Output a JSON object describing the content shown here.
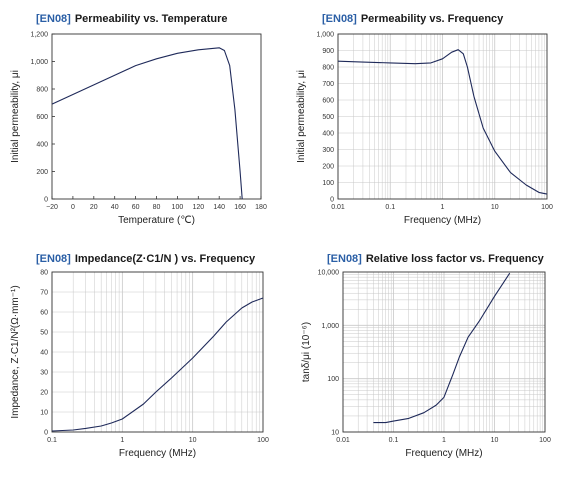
{
  "colors": {
    "code": "#2b5fa6",
    "grid": "#c8c8c8",
    "frame": "#333333",
    "line": "#1f2a5a"
  },
  "chart_data": [
    {
      "type": "line",
      "title_code": "[EN08]",
      "title": "Permeability vs. Temperature",
      "xlabel": "Temperature (℃)",
      "ylabel": "Initial permeability, μi",
      "xscale": "linear",
      "yscale": "linear",
      "xlim": [
        -20,
        180
      ],
      "ylim": [
        0,
        1200
      ],
      "xticks": [
        -20,
        0,
        20,
        40,
        60,
        80,
        100,
        120,
        140,
        160,
        180
      ],
      "xtick_labels": [
        "−20",
        "0",
        "20",
        "40",
        "60",
        "80",
        "100",
        "120",
        "140",
        "160",
        "180"
      ],
      "yticks": [
        0,
        200,
        400,
        600,
        800,
        1000,
        1200
      ],
      "ytick_labels": [
        "0",
        "200",
        "400",
        "600",
        "800",
        "1,000",
        "1,200"
      ],
      "grid": false,
      "series": [
        {
          "x": [
            -20,
            0,
            20,
            40,
            60,
            80,
            100,
            120,
            140,
            145,
            150,
            155,
            160,
            162
          ],
          "y": [
            690,
            760,
            830,
            900,
            970,
            1020,
            1060,
            1085,
            1100,
            1080,
            970,
            650,
            200,
            0
          ]
        }
      ]
    },
    {
      "type": "line",
      "title_code": "[EN08]",
      "title": "Permeability vs. Frequency",
      "xlabel": "Frequency (MHz)",
      "ylabel": "Initial permeability, μi",
      "xscale": "log",
      "yscale": "linear",
      "xlim": [
        0.01,
        100
      ],
      "ylim": [
        0,
        1000
      ],
      "xticks": [
        0.01,
        0.1,
        1,
        10,
        100
      ],
      "xtick_labels": [
        "0.01",
        "0.1",
        "1",
        "10",
        "100"
      ],
      "yticks": [
        0,
        100,
        200,
        300,
        400,
        500,
        600,
        700,
        800,
        900,
        1000
      ],
      "ytick_labels": [
        "0",
        "100",
        "200",
        "300",
        "400",
        "500",
        "600",
        "700",
        "800",
        "900",
        "1,000"
      ],
      "grid": true,
      "series": [
        {
          "x": [
            0.01,
            0.03,
            0.1,
            0.3,
            0.6,
            1,
            1.5,
            2,
            2.5,
            3,
            4,
            6,
            10,
            20,
            40,
            70,
            100
          ],
          "y": [
            835,
            830,
            825,
            820,
            825,
            850,
            890,
            905,
            880,
            800,
            620,
            430,
            290,
            160,
            85,
            40,
            30
          ]
        }
      ]
    },
    {
      "type": "line",
      "title_code": "[EN08]",
      "title": "Impedance",
      "title_suffix": "(Z·C1/N ) vs. Frequency",
      "xlabel": "Frequency (MHz)",
      "ylabel": "Impedance, Z·C1/N²(Ω·mm⁻¹)",
      "xscale": "log",
      "yscale": "linear",
      "xlim": [
        0.1,
        100
      ],
      "ylim": [
        0,
        80
      ],
      "xticks": [
        0.1,
        1,
        10,
        100
      ],
      "xtick_labels": [
        "0.1",
        "1",
        "10",
        "100"
      ],
      "yticks": [
        0,
        10,
        20,
        30,
        40,
        50,
        60,
        70,
        80
      ],
      "ytick_labels": [
        "0",
        "10",
        "20",
        "30",
        "40",
        "50",
        "60",
        "70",
        "80"
      ],
      "grid": true,
      "series": [
        {
          "x": [
            0.1,
            0.2,
            0.3,
            0.5,
            0.7,
            1,
            2,
            3,
            5,
            10,
            20,
            30,
            50,
            70,
            100
          ],
          "y": [
            0.5,
            1,
            1.8,
            3,
            4.5,
            6.5,
            14,
            20,
            27,
            37,
            48,
            55,
            62,
            65,
            67
          ]
        }
      ]
    },
    {
      "type": "line",
      "title_code": "[EN08]",
      "title": "Relative loss factor vs. Frequency",
      "xlabel": "Frequency (MHz)",
      "ylabel": "tanδ/μi (10⁻⁶)",
      "xscale": "log",
      "yscale": "log",
      "xlim": [
        0.01,
        100
      ],
      "ylim": [
        10,
        10000
      ],
      "xticks": [
        0.01,
        0.1,
        1,
        10,
        100
      ],
      "xtick_labels": [
        "0.01",
        "0.1",
        "1",
        "10",
        "100"
      ],
      "yticks": [
        10,
        100,
        1000,
        10000
      ],
      "ytick_labels": [
        "10",
        "100",
        "1,000",
        "10,000"
      ],
      "grid": true,
      "series": [
        {
          "x": [
            0.04,
            0.07,
            0.1,
            0.2,
            0.4,
            0.7,
            1,
            1.5,
            2,
            3,
            5,
            10,
            20
          ],
          "y": [
            15,
            15,
            16,
            18,
            23,
            32,
            45,
            120,
            250,
            600,
            1200,
            3500,
            9500
          ]
        }
      ]
    }
  ]
}
